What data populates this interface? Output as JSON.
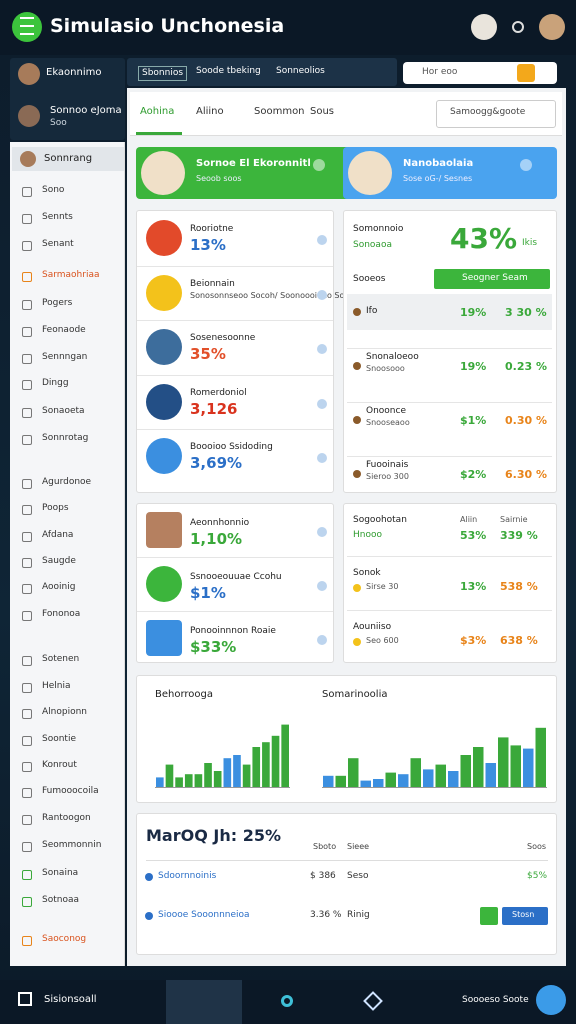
{
  "header": {
    "title": "Simulasio Unchonesia"
  },
  "side_profiles": [
    {
      "name": "Ekaonnimo"
    },
    {
      "name": "Sonnoo eJoma",
      "role": "Soo"
    }
  ],
  "top_tabs": [
    "Sbonnios",
    "Soode tbeking",
    "Sonneolios"
  ],
  "search": {
    "placeholder": "Hor eoo"
  },
  "tabs": [
    "Aohina",
    "Aliino",
    "Soommon",
    "Sous"
  ],
  "dropdown": "Samoogg&goote",
  "sidebar": {
    "active": "Sonnrang",
    "items": [
      "Sono",
      "Sennts",
      "Senant",
      "Sarmaohriaa",
      "Pogers",
      "Feonaode",
      "Sennngan",
      "Dingg",
      "Sonaoeta",
      "Sonnrotag",
      "Agurdonoe",
      "Poops",
      "Afdana",
      "Saugde",
      "Aooinig",
      "Fononoa",
      "Sotenen",
      "Helnia",
      "Alnopionn",
      "Soontie",
      "Konrout",
      "Fumooocoila",
      "Rantoogon",
      "Seommonnin",
      "Sonaina",
      "Sotnoaa",
      "Saoconog"
    ]
  },
  "feature_cards": [
    {
      "title": "Sornoe El Ekoronnitl",
      "subtitle": "Seoob soos"
    },
    {
      "title": "Nanobaolaia",
      "subtitle": "Sose oG-/ Sesnes"
    }
  ],
  "list_a": [
    {
      "title": "Rooriotne",
      "value": "13%"
    },
    {
      "title": "Beionnain",
      "value": "Sonosonnseoo Socoh/ Soonoooiono Sooo"
    },
    {
      "title": "Sosenesoonne",
      "value": "35%"
    },
    {
      "title": "Romerdoniol",
      "value": "3,126"
    },
    {
      "title": "Boooioo Ssidoding",
      "value": "3,69%"
    }
  ],
  "stats": {
    "title": "Somonnoio",
    "sub": "Sonoaoa",
    "big": "43%",
    "tag": "Ikis",
    "label": "Sooeos",
    "button": "Seogner Seam",
    "rows": [
      {
        "name": "Ifo",
        "a": "19%",
        "b": "3 30 %"
      },
      {
        "name": "Snonaloeoo",
        "sub": "Snoosooo",
        "a": "19%",
        "b": "0.23 %"
      },
      {
        "name": "Onoonce",
        "sub": "Snooseaoo",
        "a": "$1%",
        "b": "0.30 %"
      },
      {
        "name": "Fuooinais",
        "sub": "Sieroo 300",
        "a": "$2%",
        "b": "6.30 %"
      }
    ]
  },
  "list_b": [
    {
      "title": "Aeonnhonnio",
      "value": "1,10%"
    },
    {
      "title": "Ssnooeouuae Ccohu",
      "value": "$1%"
    },
    {
      "title": "Ponooinnnon Roaie",
      "value": "$33%"
    }
  ],
  "table_b": {
    "title": "Sogoohotan",
    "sub": "Hnooo",
    "columns": [
      "Aliin",
      "Sairnie"
    ],
    "header_values": [
      "53%",
      "339 %"
    ],
    "rows": [
      {
        "name": "Sonok",
        "sub": "Sirse 30",
        "a": "13%",
        "b": "538 %"
      },
      {
        "name": "Aouniiso",
        "sub": "Seo 600",
        "a": "$3%",
        "b": "638 %"
      }
    ]
  },
  "charts": [
    {
      "title": "Behorrooga",
      "values": [
        12,
        28,
        12,
        16,
        16,
        30,
        20,
        36,
        40,
        28,
        50,
        56,
        64,
        78
      ],
      "colors": [
        "#3b8fe0",
        "#3aa83a",
        "#3aa83a",
        "#3aa83a",
        "#3aa83a",
        "#3aa83a",
        "#3aa83a",
        "#3b8fe0",
        "#3b8fe0",
        "#3aa83a",
        "#3aa83a",
        "#3aa83a",
        "#3aa83a",
        "#3aa83a"
      ]
    },
    {
      "title": "Somarinoolia",
      "values": [
        14,
        14,
        36,
        8,
        10,
        18,
        16,
        36,
        22,
        28,
        20,
        40,
        50,
        30,
        62,
        52,
        48,
        74
      ],
      "colors": [
        "#3b8fe0",
        "#3aa83a",
        "#3aa83a",
        "#3b8fe0",
        "#3b8fe0",
        "#3aa83a",
        "#3b8fe0",
        "#3aa83a",
        "#3b8fe0",
        "#3aa83a",
        "#3b8fe0",
        "#3aa83a",
        "#3aa83a",
        "#3b8fe0",
        "#3aa83a",
        "#3aa83a",
        "#3b8fe0",
        "#3aa83a"
      ]
    }
  ],
  "bottom": {
    "title": "MarOQ Jh: 25%",
    "columns": [
      "Sboto",
      "Sieee",
      "Soos"
    ],
    "rows": [
      [
        "Sdoornnoinis",
        "$ 386",
        "Seso",
        "$5%"
      ],
      [
        "Sioooe Sooonnneioa",
        "3.36 %",
        "Rinig"
      ]
    ],
    "button": "Stosn"
  },
  "nav": {
    "left": "Sisionsoall",
    "right": "Soooeso Soote"
  }
}
